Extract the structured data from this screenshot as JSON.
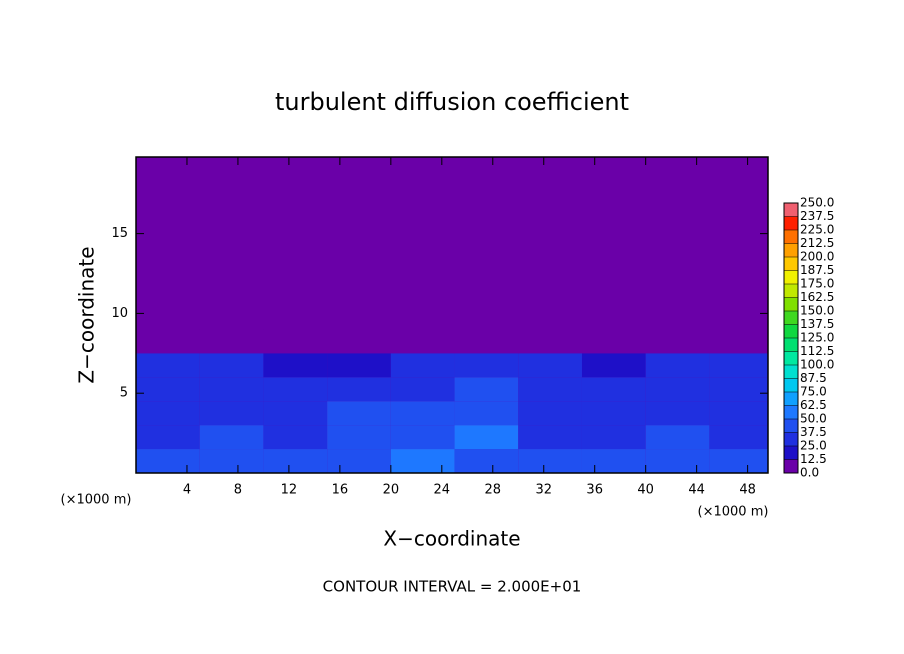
{
  "chart_data": {
    "type": "heatmap",
    "title": "turbulent diffusion coefficient",
    "x_label": "X−coordinate",
    "y_label": "Z−coordinate",
    "x_unit": "(×1000 m)",
    "y_unit": "(×1000 m)",
    "footer": "CONTOUR INTERVAL = 2.000E+01",
    "xlim": [
      0,
      49.6
    ],
    "ylim": [
      0,
      19.8
    ],
    "xticks": [
      4,
      8,
      12,
      16,
      20,
      24,
      28,
      32,
      36,
      40,
      44,
      48
    ],
    "yticks": [
      5,
      10,
      15
    ],
    "x": [
      2.5,
      7.5,
      12.5,
      17.5,
      22.5,
      27.5,
      32.5,
      37.5,
      42.5,
      47.5
    ],
    "y": [
      0.75,
      2.25,
      3.75,
      5.25,
      6.75,
      8.25
    ],
    "z": [
      [
        40,
        45,
        40,
        45,
        50,
        45,
        40,
        40,
        45,
        40
      ],
      [
        35,
        40,
        30,
        45,
        40,
        50,
        35,
        30,
        40,
        35
      ],
      [
        35,
        30,
        30,
        40,
        40,
        45,
        35,
        30,
        35,
        30
      ],
      [
        30,
        30,
        25,
        35,
        35,
        40,
        30,
        25,
        35,
        30
      ],
      [
        25,
        25,
        20,
        20,
        25,
        30,
        25,
        20,
        25,
        25
      ],
      [
        5,
        5,
        0,
        0,
        5,
        5,
        0,
        0,
        0,
        0
      ]
    ],
    "levels": [
      {
        "value": 0,
        "label": "0.0"
      },
      {
        "value": 12.5,
        "label": "12.5"
      },
      {
        "value": 25,
        "label": "25.0"
      },
      {
        "value": 37.5,
        "label": "37.5"
      },
      {
        "value": 50,
        "label": "50.0"
      },
      {
        "value": 62.5,
        "label": "62.5"
      },
      {
        "value": 75,
        "label": "75.0"
      },
      {
        "value": 87.5,
        "label": "87.5"
      },
      {
        "value": 100,
        "label": "100.0"
      },
      {
        "value": 112.5,
        "label": "112.5"
      },
      {
        "value": 125,
        "label": "125.0"
      },
      {
        "value": 137.5,
        "label": "137.5"
      },
      {
        "value": 150,
        "label": "150.0"
      },
      {
        "value": 162.5,
        "label": "162.5"
      },
      {
        "value": 175,
        "label": "175.0"
      },
      {
        "value": 187.5,
        "label": "187.5"
      },
      {
        "value": 200,
        "label": "200.0"
      },
      {
        "value": 212.5,
        "label": "212.5"
      },
      {
        "value": 225,
        "label": "225.0"
      },
      {
        "value": 237.5,
        "label": "237.5"
      },
      {
        "value": 250,
        "label": "250.0"
      }
    ],
    "colors": [
      "#6a00a8",
      "#1e10c8",
      "#2030e0",
      "#2050f0",
      "#1e78ff",
      "#10a0ff",
      "#00c8f0",
      "#00e0d0",
      "#00e8a0",
      "#00e070",
      "#10d840",
      "#40d820",
      "#80e000",
      "#c0e800",
      "#f0f000",
      "#ffc800",
      "#ffa000",
      "#ff7000",
      "#ff2000",
      "#f06070"
    ]
  }
}
